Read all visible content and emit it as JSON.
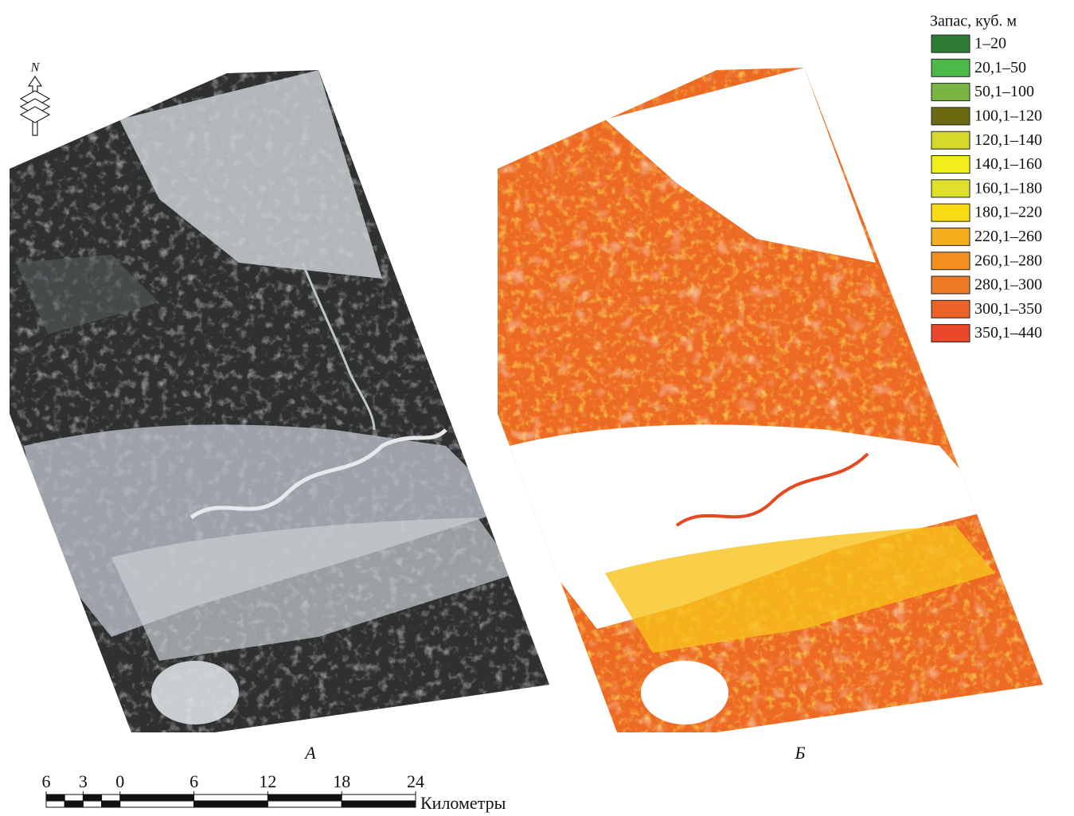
{
  "north_label": "N",
  "legend": {
    "title": "Запас, куб. м",
    "items": [
      {
        "label": "1–20",
        "color": "#2e7b34"
      },
      {
        "label": "20,1–50",
        "color": "#4cb848"
      },
      {
        "label": "50,1–100",
        "color": "#7ab443"
      },
      {
        "label": "100,1–120",
        "color": "#6b6a12"
      },
      {
        "label": "120,1–140",
        "color": "#d6d92a"
      },
      {
        "label": "140,1–160",
        "color": "#f2ee1c"
      },
      {
        "label": "160,1–180",
        "color": "#dfe02a"
      },
      {
        "label": "180,1–220",
        "color": "#f9dc14"
      },
      {
        "label": "220,1–260",
        "color": "#f6ad1d"
      },
      {
        "label": "260,1–280",
        "color": "#f28f1f"
      },
      {
        "label": "280,1–300",
        "color": "#ef7a23"
      },
      {
        "label": "300,1–350",
        "color": "#ec6125"
      },
      {
        "label": "350,1–440",
        "color": "#e9482a"
      }
    ]
  },
  "panels": [
    {
      "label": "А"
    },
    {
      "label": "Б"
    }
  ],
  "scale_bar": {
    "xlim": [
      -6,
      24
    ],
    "ticks": [
      {
        "value": -6,
        "label": "6"
      },
      {
        "value": -3,
        "label": "3"
      },
      0,
      6,
      12,
      18,
      24
    ],
    "unit": "Километры"
  }
}
